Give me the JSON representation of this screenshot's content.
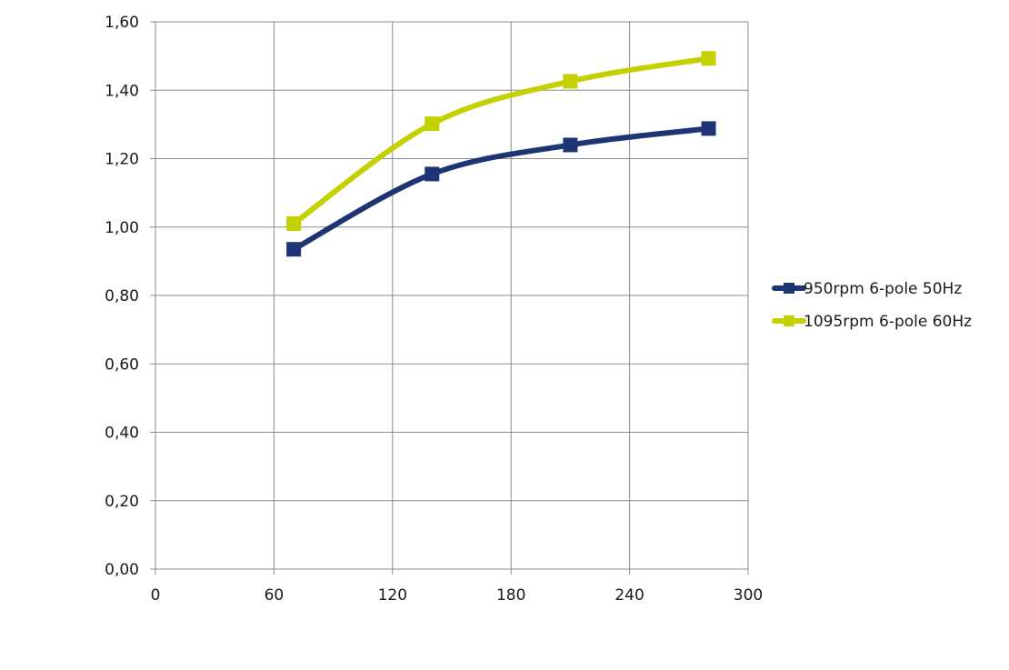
{
  "chart_data": {
    "type": "line",
    "title": "",
    "xlabel": "",
    "ylabel": "",
    "xlim": [
      0,
      300
    ],
    "ylim": [
      0,
      1.6
    ],
    "x_ticks": [
      "0",
      "60",
      "120",
      "180",
      "240",
      "300"
    ],
    "y_ticks": [
      "0,00",
      "0,20",
      "0,40",
      "0,60",
      "0,80",
      "1,00",
      "1,20",
      "1,40",
      "1,60"
    ],
    "grid": true,
    "legend_position": "right",
    "series": [
      {
        "name": "950rpm 6-pole 50Hz",
        "color": "#1f3475",
        "x": [
          70,
          140,
          210,
          280
        ],
        "y": [
          0.935,
          1.155,
          1.24,
          1.288
        ]
      },
      {
        "name": "1095rpm 6-pole 60Hz",
        "color": "#c5d000",
        "x": [
          70,
          140,
          210,
          280
        ],
        "y": [
          1.01,
          1.302,
          1.426,
          1.493
        ]
      }
    ]
  }
}
